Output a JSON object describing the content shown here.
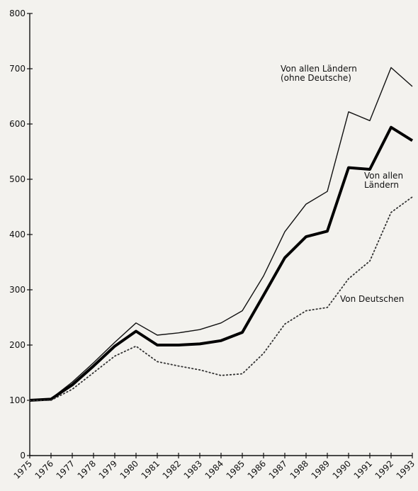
{
  "chart_data": {
    "type": "line",
    "title": "",
    "xlabel": "",
    "ylabel": "",
    "ylim": [
      0,
      800
    ],
    "yticks": [
      0,
      100,
      200,
      300,
      400,
      500,
      600,
      700,
      800
    ],
    "x": [
      "1975",
      "1976",
      "1977",
      "1978",
      "1979",
      "1980",
      "1981",
      "1982",
      "1983",
      "1984",
      "1985",
      "1986",
      "1987",
      "1988",
      "1989",
      "1990",
      "1991",
      "1992",
      "1993"
    ],
    "grid": false,
    "legend": "none",
    "series": [
      {
        "name": "Von allen Ländern (ohne Deutsche)",
        "style": "thin",
        "color": "#111111",
        "values": [
          100,
          103,
          133,
          168,
          205,
          240,
          218,
          222,
          228,
          240,
          262,
          325,
          405,
          455,
          478,
          622,
          606,
          702,
          668
        ]
      },
      {
        "name": "Von allen Ländern",
        "style": "thick",
        "color": "#000000",
        "values": [
          100,
          102,
          128,
          162,
          198,
          225,
          200,
          200,
          202,
          208,
          223,
          290,
          358,
          396,
          406,
          521,
          518,
          594,
          570
        ]
      },
      {
        "name": "Von Deutschen",
        "style": "dotted",
        "color": "#333333",
        "values": [
          100,
          100,
          120,
          150,
          180,
          198,
          170,
          162,
          155,
          145,
          148,
          185,
          238,
          262,
          268,
          320,
          352,
          440,
          468
        ]
      }
    ],
    "annotations": [
      {
        "series": 0,
        "lines": [
          "Von allen Ländern",
          "(ohne Deutsche)"
        ]
      },
      {
        "series": 1,
        "lines": [
          "Von allen",
          "Ländern"
        ]
      },
      {
        "series": 2,
        "lines": [
          "Von Deutschen"
        ]
      }
    ]
  }
}
